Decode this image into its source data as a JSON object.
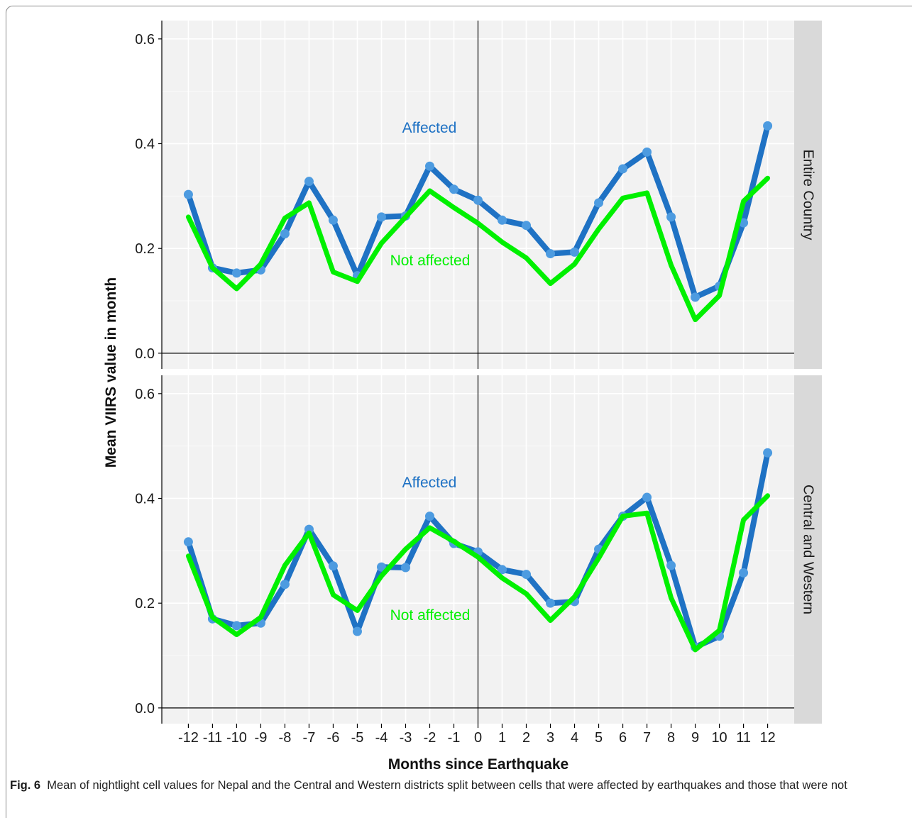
{
  "figure": {
    "label": "Fig. 6",
    "caption": "Mean of nightlight cell values for Nepal and the Central and Western districts split between cells that were affected by earthquakes and those that were not"
  },
  "chart_data": {
    "type": "line",
    "xlabel": "Months since Earthquake",
    "ylabel": "Mean VIIRS value in month",
    "x": [
      -12,
      -11,
      -10,
      -9,
      -8,
      -7,
      -6,
      -5,
      -4,
      -3,
      -2,
      -1,
      0,
      1,
      2,
      3,
      4,
      5,
      6,
      7,
      8,
      9,
      10,
      11,
      12
    ],
    "x_tick_labels": [
      "-12",
      "-11",
      "-10",
      "-9",
      "-8",
      "-7",
      "-6",
      "-5",
      "-4",
      "-3",
      "-2",
      "-1",
      "0",
      "1",
      "2",
      "3",
      "4",
      "5",
      "6",
      "7",
      "8",
      "9",
      "10",
      "11",
      "12"
    ],
    "xlim": [
      -13.1,
      13.1
    ],
    "ylim": [
      -0.03,
      0.635
    ],
    "y_ticks": [
      0.0,
      0.2,
      0.4,
      0.6
    ],
    "y_tick_labels": [
      "0.0",
      "0.2",
      "0.4",
      "0.6"
    ],
    "vline_x": 0,
    "hline_y": 0,
    "colors": {
      "affected": "#1f72c4",
      "not_affected": "#00f000",
      "affected_point": "#4d9be0",
      "panel_bg": "#f2f2f2",
      "strip_bg": "#d9d9d9"
    },
    "panels": [
      {
        "strip": "Entire Country",
        "labels": {
          "affected": "Affected",
          "not_affected": "Not affected"
        },
        "series": [
          {
            "name": "Affected",
            "values": [
              0.303,
              0.163,
              0.153,
              0.159,
              0.228,
              0.328,
              0.254,
              0.148,
              0.26,
              0.262,
              0.357,
              0.313,
              0.292,
              0.254,
              0.244,
              0.19,
              0.193,
              0.287,
              0.352,
              0.384,
              0.26,
              0.107,
              0.128,
              0.249,
              0.434
            ]
          },
          {
            "name": "Not affected",
            "values": [
              0.26,
              0.163,
              0.123,
              0.17,
              0.258,
              0.287,
              0.155,
              0.137,
              0.21,
              0.26,
              0.31,
              0.278,
              0.248,
              0.212,
              0.182,
              0.133,
              0.17,
              0.237,
              0.296,
              0.306,
              0.168,
              0.064,
              0.11,
              0.29,
              0.334
            ]
          }
        ]
      },
      {
        "strip": "Central and Western",
        "labels": {
          "affected": "Affected",
          "not_affected": "Not affected"
        },
        "series": [
          {
            "name": "Affected",
            "values": [
              0.317,
              0.17,
              0.157,
              0.162,
              0.236,
              0.341,
              0.271,
              0.146,
              0.269,
              0.268,
              0.366,
              0.314,
              0.298,
              0.264,
              0.255,
              0.2,
              0.203,
              0.303,
              0.366,
              0.402,
              0.272,
              0.116,
              0.137,
              0.258,
              0.487
            ]
          },
          {
            "name": "Not affected",
            "values": [
              0.29,
              0.173,
              0.14,
              0.173,
              0.272,
              0.334,
              0.216,
              0.186,
              0.252,
              0.303,
              0.344,
              0.318,
              0.288,
              0.248,
              0.218,
              0.167,
              0.212,
              0.286,
              0.366,
              0.372,
              0.21,
              0.111,
              0.148,
              0.359,
              0.405
            ]
          }
        ]
      }
    ]
  }
}
